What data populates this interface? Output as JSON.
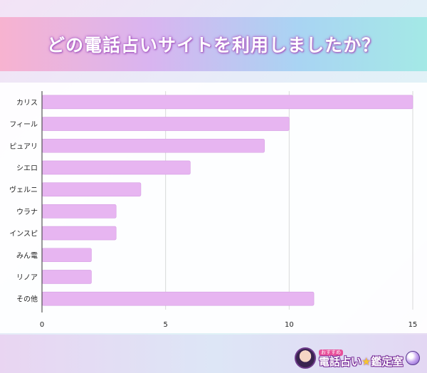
{
  "title": "どの電話占いサイトを利用しましたか？",
  "colors": {
    "bar": "#e7b5f1",
    "bar_stroke": "#d59ee3",
    "grid": "#d9d9d9",
    "axis": "#333333",
    "label": "#222222"
  },
  "logo": {
    "small_text": "おすすめ",
    "main_text": "電話占い",
    "star": "★",
    "sub_text": "鑑定室"
  },
  "chart_data": {
    "type": "bar",
    "orientation": "horizontal",
    "title": "",
    "xlabel": "",
    "ylabel": "",
    "categories": [
      "カリス",
      "フィール",
      "ピュアリ",
      "シエロ",
      "ヴェルニ",
      "ウラナ",
      "インスピ",
      "みん電",
      "リノア",
      "その他"
    ],
    "values": [
      15,
      10,
      9,
      6,
      4,
      3,
      3,
      2,
      2,
      11
    ],
    "xlim": [
      0,
      15
    ],
    "xticks": [
      0,
      5,
      10,
      15
    ],
    "grid": true,
    "legend": "none"
  }
}
